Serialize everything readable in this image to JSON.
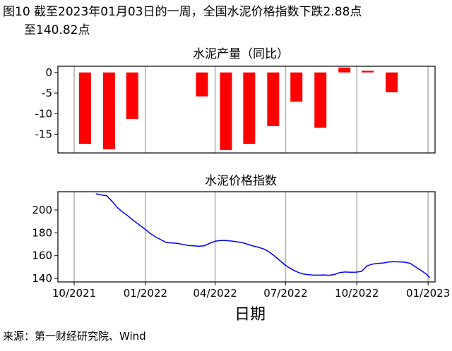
{
  "figure": {
    "title_line1": "图10  截至2023年01月03日的一周，全国水泥价格指数下跌2.88点",
    "title_line2": "至140.82点",
    "source": "来源：第一财经研究院、Wind"
  },
  "colors": {
    "bar": "#ff0000",
    "line": "#0000ff",
    "grid": "#b3b3b3",
    "frame": "#000000"
  },
  "chart_data": [
    {
      "type": "bar",
      "title": "水泥产量（同比）",
      "xlabel": "",
      "ylabel": "",
      "x_range": [
        "2021-09-10",
        "2023-01-10"
      ],
      "ylim": [
        -19.5,
        1.5
      ],
      "yticks": [
        0,
        -5,
        -10,
        -15
      ],
      "grid": "vertical",
      "xticks": [
        "2021-10-01",
        "2022-01-01",
        "2022-04-01",
        "2022-07-01",
        "2022-10-01",
        "2023-01-01"
      ],
      "categories": [
        "2021-10",
        "2021-11",
        "2021-12",
        "2022-03",
        "2022-04",
        "2022-05",
        "2022-06",
        "2022-07",
        "2022-08",
        "2022-09",
        "2022-10",
        "2022-11"
      ],
      "values": [
        -17.3,
        -18.6,
        -11.3,
        -5.8,
        -18.8,
        -17.3,
        -13.0,
        -7.1,
        -13.4,
        1.2,
        0.4,
        -4.8
      ]
    },
    {
      "type": "line",
      "title": "水泥价格指数",
      "xlabel": "日期",
      "ylabel": "",
      "x_range": [
        "2021-09-10",
        "2023-01-10"
      ],
      "ylim": [
        137,
        216
      ],
      "yticks": [
        140,
        160,
        180,
        200
      ],
      "grid": "vertical",
      "xticks": [
        "2021-10-01",
        "2022-01-01",
        "2022-04-01",
        "2022-07-01",
        "2022-10-01",
        "2023-01-01"
      ],
      "xtick_labels": [
        "10/2021",
        "01/2022",
        "04/2022",
        "07/2022",
        "10/2022",
        "01/2023"
      ],
      "series": [
        {
          "x": [
            "2021-10-29",
            "2021-11-05",
            "2021-11-12",
            "2021-11-19",
            "2021-11-26",
            "2021-12-03",
            "2021-12-10",
            "2021-12-17",
            "2021-12-24",
            "2021-12-31",
            "2022-01-07",
            "2022-01-14",
            "2022-01-21",
            "2022-01-28",
            "2022-02-11",
            "2022-02-18",
            "2022-02-25",
            "2022-03-04",
            "2022-03-11",
            "2022-03-18",
            "2022-03-25",
            "2022-04-01",
            "2022-04-08",
            "2022-04-15",
            "2022-04-22",
            "2022-04-29",
            "2022-05-06",
            "2022-05-13",
            "2022-05-20",
            "2022-05-27",
            "2022-06-03",
            "2022-06-10",
            "2022-06-17",
            "2022-06-24",
            "2022-07-01",
            "2022-07-08",
            "2022-07-15",
            "2022-07-22",
            "2022-07-29",
            "2022-08-05",
            "2022-08-12",
            "2022-08-19",
            "2022-08-26",
            "2022-09-02",
            "2022-09-09",
            "2022-09-16",
            "2022-09-23",
            "2022-09-30",
            "2022-10-07",
            "2022-10-14",
            "2022-10-21",
            "2022-10-28",
            "2022-11-04",
            "2022-11-11",
            "2022-11-18",
            "2022-11-25",
            "2022-12-02",
            "2022-12-09",
            "2022-12-16",
            "2022-12-23",
            "2022-12-30",
            "2023-01-03"
          ],
          "y": [
            214.3,
            213.2,
            212.5,
            207.5,
            202.0,
            198.0,
            194.5,
            190.5,
            187.0,
            183.5,
            179.5,
            176.5,
            174.0,
            171.5,
            170.8,
            169.9,
            169.0,
            168.6,
            168.2,
            168.6,
            170.8,
            172.6,
            173.3,
            173.2,
            172.8,
            172.2,
            171.4,
            170.0,
            168.5,
            167.3,
            165.8,
            163.2,
            159.5,
            155.5,
            151.5,
            148.5,
            146.0,
            144.2,
            143.4,
            143.0,
            142.9,
            143.1,
            142.8,
            143.5,
            145.2,
            145.7,
            145.5,
            145.6,
            146.2,
            151.0,
            152.6,
            153.2,
            153.6,
            154.4,
            154.7,
            154.5,
            154.3,
            153.3,
            150.0,
            147.0,
            143.7,
            140.82
          ]
        }
      ]
    }
  ]
}
